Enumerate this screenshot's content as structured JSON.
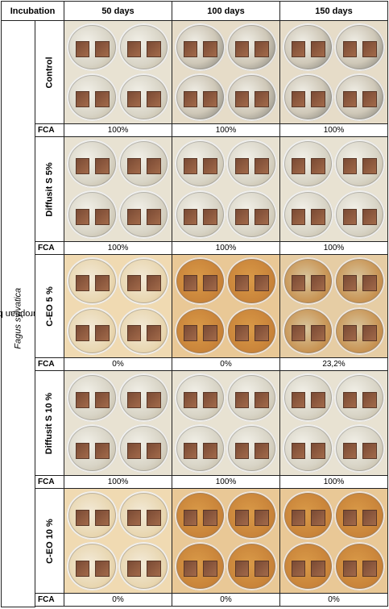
{
  "header": {
    "incubation": "Incubation",
    "days": [
      "50 days",
      "100 days",
      "150 days"
    ]
  },
  "species_label": "European beech (Fagus sylvatica)",
  "species_common": "European beech (",
  "species_latin": "Fagus sylvatica",
  "species_close": ")",
  "fca_label": "FCA",
  "treatments": [
    {
      "name": "Control",
      "fca": [
        "100%",
        "100%",
        "100%"
      ]
    },
    {
      "name": "Diffusit S 5%",
      "fca": [
        "100%",
        "100%",
        "100%"
      ]
    },
    {
      "name": "C-EO 5 %",
      "fca": [
        "0%",
        "0%",
        "23,2%"
      ]
    },
    {
      "name": "Diffusit S 10 %",
      "fca": [
        "100%",
        "100%",
        "100%"
      ]
    },
    {
      "name": "C-EO 10 %",
      "fca": [
        "0%",
        "0%",
        "0%"
      ]
    }
  ],
  "photo_appearance": [
    [
      "white-mould",
      "white-mould-dark",
      "white-mould-dark"
    ],
    [
      "white-mould",
      "white-mould",
      "white-mould"
    ],
    [
      "clear-amber",
      "amber",
      "amber-mould"
    ],
    [
      "white-mould",
      "white-mould",
      "white-mould"
    ],
    [
      "clear-amber",
      "amber",
      "amber"
    ]
  ],
  "colors": {
    "background": "#f4ddb8",
    "border": "#222222"
  }
}
